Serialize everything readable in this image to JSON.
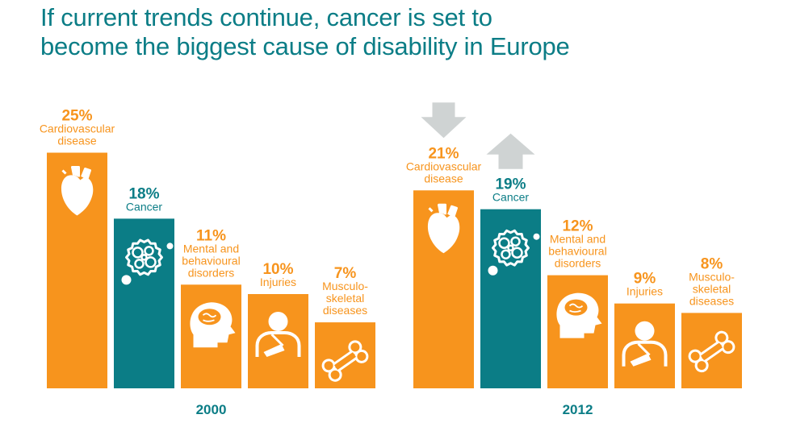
{
  "title_lines": [
    "If current trends continue, cancer is set to",
    "become the biggest cause of disability in Europe"
  ],
  "colors": {
    "title": "#0b7d86",
    "orange": "#f7941d",
    "teal": "#0b7d86",
    "arrow": "#cfd3d3"
  },
  "chart_data": [
    {
      "type": "bar",
      "year": "2000",
      "unit": "%",
      "ylim": [
        0,
        25
      ],
      "bars": [
        {
          "category": "Cardiovascular disease",
          "label_lines": [
            "Cardiovascular",
            "disease"
          ],
          "value": 25,
          "value_text": "25%",
          "color": "orange",
          "icon": "heart-icon"
        },
        {
          "category": "Cancer",
          "label_lines": [
            "Cancer"
          ],
          "value": 18,
          "value_text": "18%",
          "color": "teal",
          "icon": "cell-cluster-icon"
        },
        {
          "category": "Mental and behavioural disorders",
          "label_lines": [
            "Mental and",
            "behavioural",
            "disorders"
          ],
          "value": 11,
          "value_text": "11%",
          "color": "orange",
          "icon": "brain-head-icon"
        },
        {
          "category": "Injuries",
          "label_lines": [
            "Injuries"
          ],
          "value": 10,
          "value_text": "10%",
          "color": "orange",
          "icon": "arm-sling-icon"
        },
        {
          "category": "Musculo-skeletal diseases",
          "label_lines": [
            "Musculo-",
            "skeletal",
            "diseases"
          ],
          "value": 7,
          "value_text": "7%",
          "color": "orange",
          "icon": "bone-icon"
        }
      ]
    },
    {
      "type": "bar",
      "year": "2012",
      "unit": "%",
      "ylim": [
        0,
        25
      ],
      "bars": [
        {
          "category": "Cardiovascular disease",
          "label_lines": [
            "Cardiovascular",
            "disease"
          ],
          "value": 21,
          "value_text": "21%",
          "color": "orange",
          "icon": "heart-icon",
          "trend": "down"
        },
        {
          "category": "Cancer",
          "label_lines": [
            "Cancer"
          ],
          "value": 19,
          "value_text": "19%",
          "color": "teal",
          "icon": "cell-cluster-icon",
          "trend": "up"
        },
        {
          "category": "Mental and behavioural disorders",
          "label_lines": [
            "Mental and",
            "behavioural",
            "disorders"
          ],
          "value": 12,
          "value_text": "12%",
          "color": "orange",
          "icon": "brain-head-icon"
        },
        {
          "category": "Injuries",
          "label_lines": [
            "Injuries"
          ],
          "value": 9,
          "value_text": "9%",
          "color": "orange",
          "icon": "arm-sling-icon"
        },
        {
          "category": "Musculo-skeletal diseases",
          "label_lines": [
            "Musculo-",
            "skeletal",
            "diseases"
          ],
          "value": 8,
          "value_text": "8%",
          "color": "orange",
          "icon": "bone-icon"
        }
      ]
    }
  ]
}
